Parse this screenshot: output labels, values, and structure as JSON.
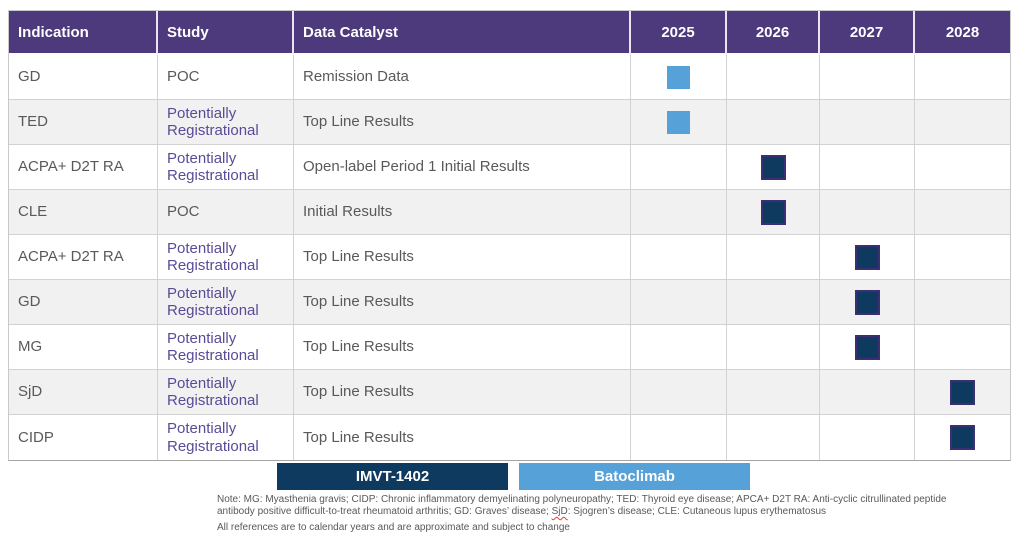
{
  "table": {
    "columns": [
      "Indication",
      "Study",
      "Data Catalyst",
      "2025",
      "2026",
      "2027",
      "2028"
    ],
    "year_columns": [
      "2025",
      "2026",
      "2027",
      "2028"
    ],
    "rows": [
      {
        "indication": "GD",
        "study": "POC",
        "catalyst": "Remission Data",
        "year": "2025",
        "product": "Batoclimab"
      },
      {
        "indication": "TED",
        "study": "Potentially Registrational",
        "catalyst": "Top Line Results",
        "year": "2025",
        "product": "Batoclimab"
      },
      {
        "indication": "ACPA+ D2T RA",
        "study": "Potentially Registrational",
        "catalyst": "Open-label Period 1 Initial Results",
        "year": "2026",
        "product": "IMVT-1402"
      },
      {
        "indication": "CLE",
        "study": "POC",
        "catalyst": "Initial Results",
        "year": "2026",
        "product": "IMVT-1402"
      },
      {
        "indication": "ACPA+ D2T RA",
        "study": "Potentially Registrational",
        "catalyst": "Top Line Results",
        "year": "2027",
        "product": "IMVT-1402"
      },
      {
        "indication": "GD",
        "study": "Potentially Registrational",
        "catalyst": "Top Line Results",
        "year": "2027",
        "product": "IMVT-1402"
      },
      {
        "indication": "MG",
        "study": "Potentially Registrational",
        "catalyst": "Top Line Results",
        "year": "2027",
        "product": "IMVT-1402"
      },
      {
        "indication": "SjD",
        "study": "Potentially Registrational",
        "catalyst": "Top Line Results",
        "year": "2028",
        "product": "IMVT-1402"
      },
      {
        "indication": "CIDP",
        "study": "Potentially Registrational",
        "catalyst": "Top Line Results",
        "year": "2028",
        "product": "IMVT-1402"
      }
    ]
  },
  "legend": {
    "items": [
      {
        "label": "IMVT-1402",
        "color": "#0E3A5F"
      },
      {
        "label": "Batoclimab",
        "color": "#55A1D8"
      }
    ]
  },
  "notes": {
    "line1_before": "Note: MG: Myasthenia gravis; CIDP: Chronic inflammatory demyelinating polyneuropathy; TED: Thyroid eye disease; APCA+ D2T RA: Anti-cyclic citrullinated peptide antibody positive difficult-to-treat rheumatoid arthritis; GD: Graves’ disease; ",
    "line1_word": "SjD",
    "line1_after": ": Sjogren’s disease; CLE: Cutaneous lupus erythematosus",
    "line2": "All references are to calendar years and are approximate and subject to change"
  },
  "colors": {
    "header_purple": "#4C3A7D",
    "study_purple": "#5B4A97",
    "imvt_navy": "#0E3A5F",
    "batoclimab_blue": "#55A1D8",
    "marker_border_purple": "#3D2D72",
    "body_text_gray": "#595959",
    "alt_row_gray": "#F1F1F1"
  }
}
